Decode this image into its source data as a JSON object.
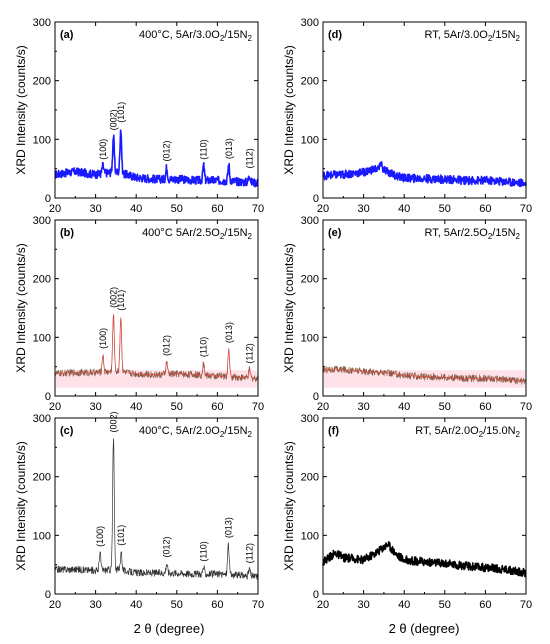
{
  "figure": {
    "xlabel": "2 θ (degree)",
    "ylabel": "XRD Intensity (counts/s)"
  },
  "chart_data": [
    {
      "id": "a",
      "type": "line",
      "panel_label": "(a)",
      "condition": "400°C, 5Ar/3.0O",
      "condition_sub": "2",
      "condition_tail": "/15N",
      "condition_sub2": "2",
      "color": "#1a1aff",
      "stroke_style": "thick",
      "xlim": [
        20,
        70
      ],
      "ylim": [
        0,
        300
      ],
      "xticks": [
        20,
        30,
        40,
        50,
        60,
        70
      ],
      "yticks": [
        0,
        100,
        200,
        300
      ],
      "baseline": {
        "x": [
          20,
          25,
          30,
          35,
          40,
          45,
          50,
          55,
          60,
          65,
          70
        ],
        "y": [
          40,
          45,
          40,
          45,
          35,
          32,
          32,
          30,
          30,
          28,
          26
        ]
      },
      "peaks": [
        {
          "label": "(100)",
          "x": 31.8,
          "y": 55
        },
        {
          "label": "(002)",
          "x": 34.4,
          "y": 105
        },
        {
          "label": "(101)",
          "x": 36.2,
          "y": 118
        },
        {
          "label": "(012)",
          "x": 47.5,
          "y": 52
        },
        {
          "label": "(110)",
          "x": 56.6,
          "y": 55
        },
        {
          "label": "(013)",
          "x": 62.8,
          "y": 56
        },
        {
          "label": "(112)",
          "x": 67.9,
          "y": 40
        }
      ]
    },
    {
      "id": "b",
      "type": "line",
      "panel_label": "(b)",
      "condition": "400°C 5Ar/2.5O",
      "condition_sub": "2",
      "condition_tail": "/15N",
      "condition_sub2": "2",
      "color": "#8a5a44",
      "fit_color": "#ff4040",
      "band_color": "#ffd6e0",
      "stroke_style": "thin",
      "xlim": [
        20,
        70
      ],
      "ylim": [
        0,
        300
      ],
      "xticks": [
        20,
        30,
        40,
        50,
        60,
        70
      ],
      "yticks": [
        0,
        100,
        200,
        300
      ],
      "baseline": {
        "x": [
          20,
          25,
          30,
          35,
          40,
          45,
          50,
          55,
          60,
          65,
          70
        ],
        "y": [
          38,
          40,
          40,
          42,
          38,
          36,
          38,
          36,
          34,
          32,
          30
        ]
      },
      "peaks": [
        {
          "label": "(100)",
          "x": 31.8,
          "y": 70
        },
        {
          "label": "(002)",
          "x": 34.4,
          "y": 140
        },
        {
          "label": "(101)",
          "x": 36.2,
          "y": 135
        },
        {
          "label": "(012)",
          "x": 47.5,
          "y": 58
        },
        {
          "label": "(110)",
          "x": 56.6,
          "y": 56
        },
        {
          "label": "(013)",
          "x": 62.8,
          "y": 80
        },
        {
          "label": "(112)",
          "x": 67.9,
          "y": 45
        }
      ]
    },
    {
      "id": "c",
      "type": "line",
      "panel_label": "(c)",
      "condition": "400°C, 5Ar/2.0O",
      "condition_sub": "2",
      "condition_tail": "/15N",
      "condition_sub2": "2",
      "color": "#333333",
      "stroke_style": "thin",
      "xlim": [
        20,
        70
      ],
      "ylim": [
        0,
        300
      ],
      "xticks": [
        20,
        30,
        40,
        50,
        60,
        70
      ],
      "yticks": [
        0,
        100,
        200,
        300
      ],
      "baseline": {
        "x": [
          20,
          25,
          30,
          35,
          40,
          45,
          50,
          55,
          60,
          65,
          70
        ],
        "y": [
          42,
          42,
          40,
          42,
          36,
          36,
          36,
          34,
          34,
          32,
          30
        ]
      },
      "peaks": [
        {
          "label": "(100)",
          "x": 31.1,
          "y": 70
        },
        {
          "label": "(002)",
          "x": 34.4,
          "y": 265
        },
        {
          "label": "(101)",
          "x": 36.3,
          "y": 72
        },
        {
          "label": "(012)",
          "x": 47.5,
          "y": 52
        },
        {
          "label": "(110)",
          "x": 56.6,
          "y": 45
        },
        {
          "label": "(013)",
          "x": 62.7,
          "y": 85
        },
        {
          "label": "(112)",
          "x": 67.9,
          "y": 42
        }
      ]
    },
    {
      "id": "d",
      "type": "line",
      "panel_label": "(d)",
      "condition": "RT, 5Ar/3.0O",
      "condition_sub": "2",
      "condition_tail": "/15N",
      "condition_sub2": "2",
      "color": "#1a1aff",
      "stroke_style": "thick",
      "xlim": [
        20,
        70
      ],
      "ylim": [
        0,
        300
      ],
      "xticks": [
        20,
        30,
        40,
        50,
        60,
        70
      ],
      "yticks": [
        0,
        100,
        200,
        300
      ],
      "baseline": {
        "x": [
          20,
          25,
          30,
          33,
          35,
          38,
          40,
          45,
          50,
          55,
          60,
          65,
          70
        ],
        "y": [
          38,
          40,
          44,
          50,
          48,
          38,
          34,
          33,
          32,
          30,
          30,
          28,
          25
        ]
      },
      "peaks": [
        {
          "label": "",
          "x": 34.3,
          "y": 62
        }
      ]
    },
    {
      "id": "e",
      "type": "line",
      "panel_label": "(e)",
      "condition": "RT, 5Ar/2.5O",
      "condition_sub": "2",
      "condition_tail": "/15N",
      "condition_sub2": "2",
      "color": "#8a5a44",
      "fit_color": "#ff4040",
      "band_color": "#ffd6e0",
      "stroke_style": "thin",
      "xlim": [
        20,
        70
      ],
      "ylim": [
        0,
        300
      ],
      "xticks": [
        20,
        30,
        40,
        50,
        60,
        70
      ],
      "yticks": [
        0,
        100,
        200,
        300
      ],
      "baseline": {
        "x": [
          20,
          25,
          30,
          35,
          40,
          45,
          50,
          55,
          60,
          65,
          70
        ],
        "y": [
          45,
          45,
          42,
          40,
          35,
          33,
          32,
          30,
          30,
          28,
          25
        ]
      },
      "peaks": []
    },
    {
      "id": "f",
      "type": "line",
      "panel_label": "(f)",
      "condition": "RT, 5Ar/2.0O",
      "condition_sub": "2",
      "condition_tail": "/15.0N",
      "condition_sub2": "2",
      "color": "#000000",
      "stroke_style": "thick",
      "xlim": [
        20,
        70
      ],
      "ylim": [
        0,
        300
      ],
      "xticks": [
        20,
        30,
        40,
        50,
        60,
        70
      ],
      "yticks": [
        0,
        100,
        200,
        300
      ],
      "baseline": {
        "x": [
          20,
          23,
          25,
          28,
          30,
          33,
          36,
          38,
          40,
          45,
          50,
          55,
          60,
          65,
          70
        ],
        "y": [
          55,
          70,
          62,
          60,
          58,
          70,
          85,
          68,
          58,
          55,
          52,
          48,
          45,
          42,
          36
        ]
      },
      "peaks": []
    }
  ]
}
